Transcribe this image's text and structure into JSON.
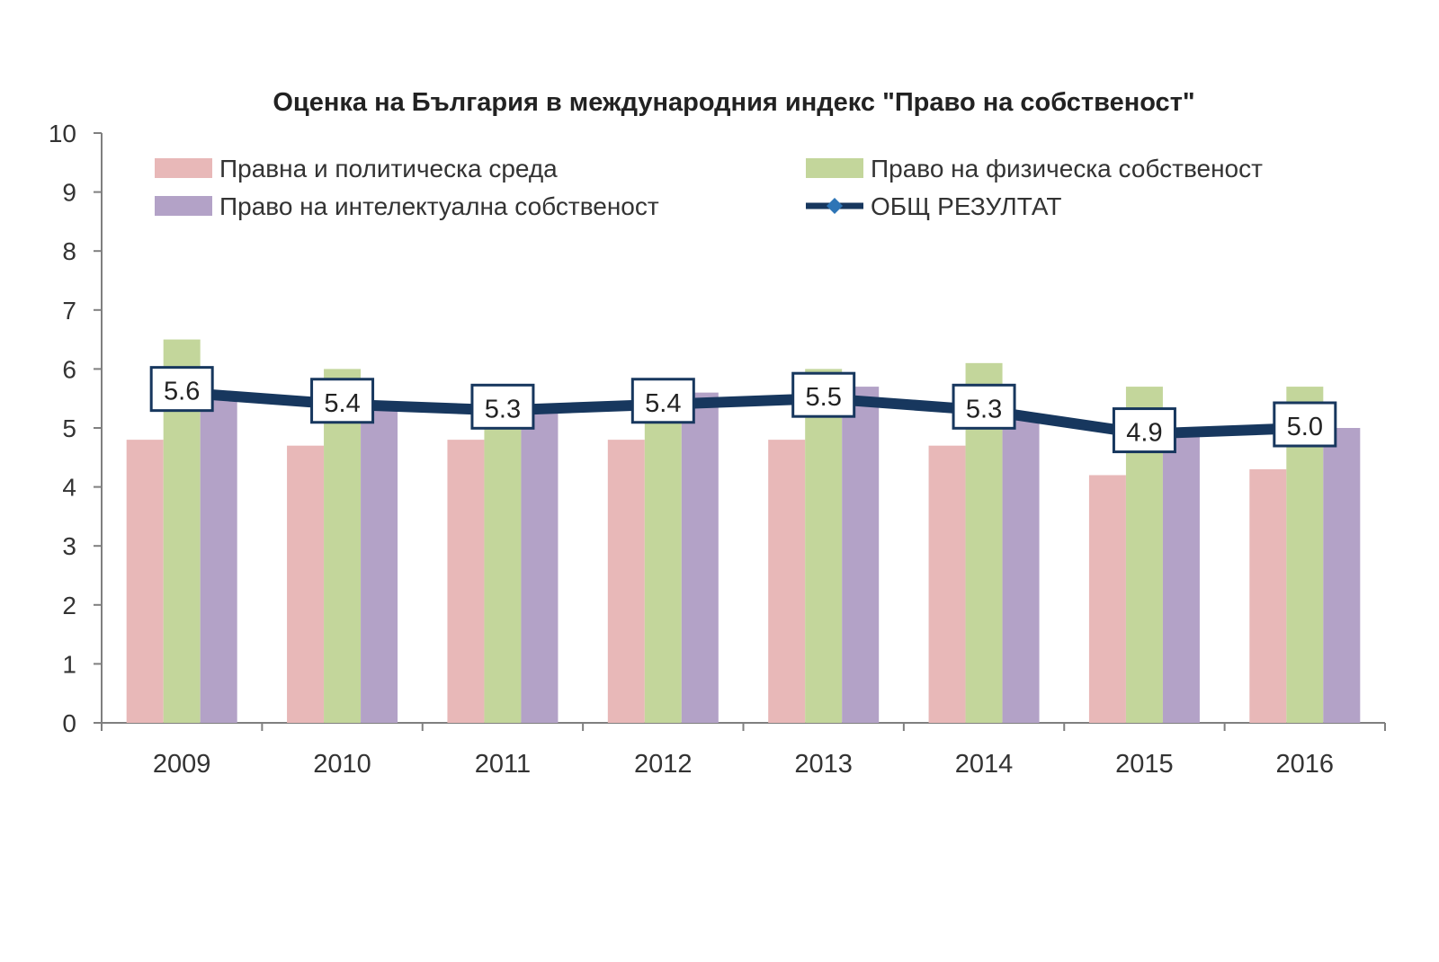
{
  "chart_data": {
    "type": "bar",
    "title": "Оценка на България в международния индекс \"Право на собственост\"",
    "xlabel": "",
    "ylabel": "",
    "ylim": [
      0,
      10
    ],
    "yticks": [
      "0",
      "1",
      "2",
      "3",
      "4",
      "5",
      "6",
      "7",
      "8",
      "9",
      "10"
    ],
    "categories": [
      "2009",
      "2010",
      "2011",
      "2012",
      "2013",
      "2014",
      "2015",
      "2016"
    ],
    "series": [
      {
        "name": "Правна и политическа среда",
        "kind": "bar",
        "color": "#e8b8b8",
        "values": [
          4.8,
          4.7,
          4.8,
          4.8,
          4.8,
          4.7,
          4.2,
          4.3
        ]
      },
      {
        "name": "Право на физическа собственост",
        "kind": "bar",
        "color": "#c3d69b",
        "values": [
          6.5,
          6.0,
          5.3,
          5.4,
          6.0,
          6.1,
          5.7,
          5.7
        ]
      },
      {
        "name": "Право на интелектуална собственост",
        "kind": "bar",
        "color": "#b3a2c7",
        "values": [
          5.6,
          5.4,
          5.3,
          5.6,
          5.7,
          5.2,
          4.9,
          5.0
        ]
      },
      {
        "name": "ОБЩ РЕЗУЛТАТ",
        "kind": "line",
        "color": "#17375e",
        "values": [
          5.6,
          5.4,
          5.3,
          5.4,
          5.5,
          5.3,
          4.9,
          5.0
        ],
        "labels": [
          "5.6",
          "5.4",
          "5.3",
          "5.4",
          "5.5",
          "5.3",
          "4.9",
          "5.0"
        ]
      }
    ],
    "legend": "top, two columns, inside plot",
    "grid": false
  }
}
